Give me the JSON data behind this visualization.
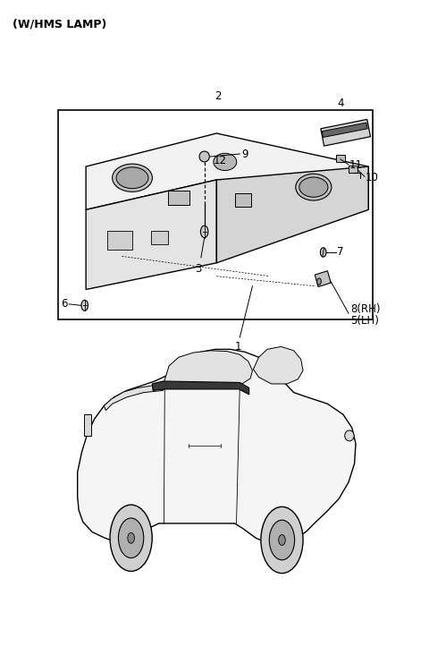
{
  "title": "(W/HMS LAMP)",
  "background_color": "#ffffff",
  "fig_width": 4.8,
  "fig_height": 7.51,
  "dpi": 100,
  "line_color": "#000000",
  "text_color": "#000000",
  "label_fontsize": 8.5,
  "title_fontsize": 9
}
